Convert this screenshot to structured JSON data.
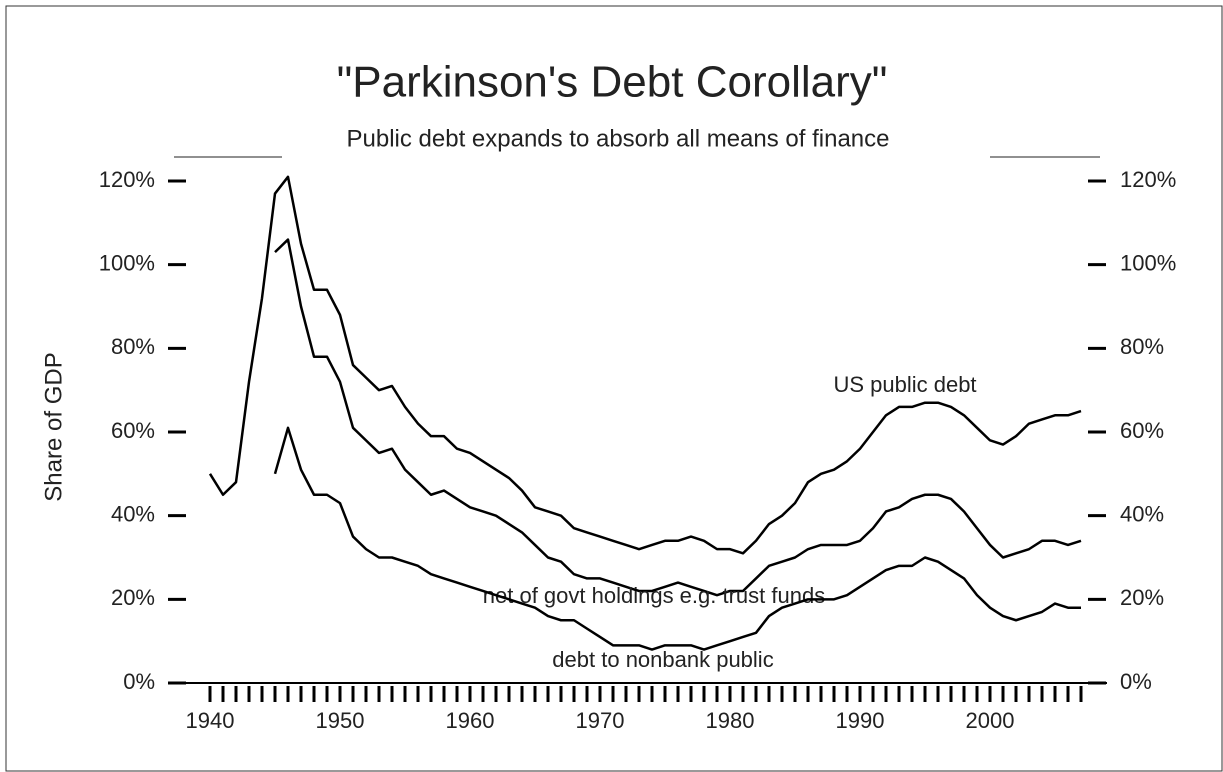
{
  "chart_data": {
    "type": "line",
    "title": "\"Parkinson's Debt Corollary\"",
    "subtitle": "Public debt expands to absorb all  means of finance",
    "y_label": "Share of GDP",
    "x": [
      1940,
      1941,
      1942,
      1943,
      1944,
      1945,
      1946,
      1947,
      1948,
      1949,
      1950,
      1951,
      1952,
      1953,
      1954,
      1955,
      1956,
      1957,
      1958,
      1959,
      1960,
      1961,
      1962,
      1963,
      1964,
      1965,
      1966,
      1967,
      1968,
      1969,
      1970,
      1971,
      1972,
      1973,
      1974,
      1975,
      1976,
      1977,
      1978,
      1979,
      1980,
      1981,
      1982,
      1983,
      1984,
      1985,
      1986,
      1987,
      1988,
      1989,
      1990,
      1991,
      1992,
      1993,
      1994,
      1995,
      1996,
      1997,
      1998,
      1999,
      2000,
      2001,
      2002,
      2003,
      2004,
      2005,
      2006,
      2007
    ],
    "series": [
      {
        "name": "US public debt",
        "color": "#000000",
        "values": [
          50,
          45,
          48,
          72,
          92,
          117,
          121,
          105,
          94,
          94,
          88,
          76,
          73,
          70,
          71,
          66,
          62,
          59,
          59,
          56,
          55,
          53,
          51,
          49,
          46,
          42,
          41,
          40,
          37,
          36,
          35,
          34,
          33,
          32,
          33,
          34,
          34,
          35,
          34,
          32,
          32,
          31,
          34,
          38,
          40,
          43,
          48,
          50,
          51,
          53,
          56,
          60,
          64,
          66,
          66,
          67,
          67,
          66,
          64,
          61,
          58,
          57,
          59,
          62,
          63,
          64,
          64,
          65
        ]
      },
      {
        "name": "net of  govt holdings e.g. trust funds",
        "color": "#000000",
        "values": [
          null,
          null,
          null,
          null,
          null,
          103,
          106,
          90,
          78,
          78,
          72,
          61,
          58,
          55,
          56,
          51,
          48,
          45,
          46,
          44,
          42,
          41,
          40,
          38,
          36,
          33,
          30,
          29,
          26,
          25,
          25,
          24,
          23,
          22,
          22,
          23,
          24,
          23,
          22,
          21,
          22,
          22,
          25,
          28,
          29,
          30,
          32,
          33,
          33,
          33,
          34,
          37,
          41,
          42,
          44,
          45,
          45,
          44,
          41,
          37,
          33,
          30,
          31,
          32,
          34,
          34,
          33,
          34
        ]
      },
      {
        "name": "debt to nonbank public",
        "color": "#000000",
        "values": [
          null,
          null,
          null,
          null,
          null,
          50,
          61,
          51,
          45,
          45,
          43,
          35,
          32,
          30,
          30,
          29,
          28,
          26,
          25,
          24,
          23,
          22,
          21,
          20,
          19,
          18,
          16,
          15,
          15,
          13,
          11,
          9,
          9,
          9,
          8,
          9,
          9,
          9,
          8,
          9,
          10,
          11,
          12,
          16,
          18,
          19,
          20,
          20,
          20,
          21,
          23,
          25,
          27,
          28,
          28,
          30,
          29,
          27,
          25,
          21,
          18,
          16,
          15,
          16,
          17,
          19,
          18,
          18
        ]
      }
    ],
    "xlim": [
      1937,
      2009
    ],
    "xticks": [
      1940,
      1950,
      1960,
      1970,
      1980,
      1990,
      2000
    ],
    "ylim": [
      0,
      120
    ],
    "yticks": [
      {
        "value": 0,
        "label": "0%"
      },
      {
        "value": 20,
        "label": "20%"
      },
      {
        "value": 40,
        "label": "40%"
      },
      {
        "value": 60,
        "label": "60%"
      },
      {
        "value": 80,
        "label": "80%"
      },
      {
        "value": 100,
        "label": "100%"
      },
      {
        "value": 120,
        "label": "120%"
      }
    ]
  }
}
